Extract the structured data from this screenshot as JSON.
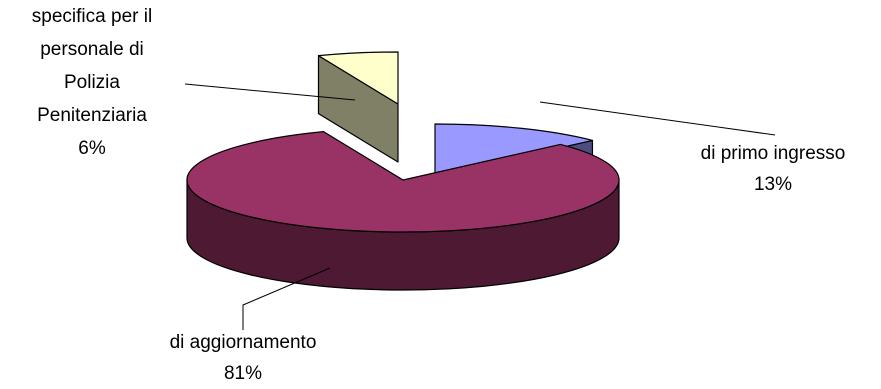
{
  "chart_data": {
    "type": "pie",
    "style": "3d-exploded",
    "title": "",
    "categories": [
      "di primo ingresso",
      "di aggiornamento",
      "specifica per il personale di Polizia Penitenziaria"
    ],
    "values": [
      13,
      81,
      6
    ],
    "value_labels": [
      "13%",
      "81%",
      "6%"
    ],
    "label_lines": [
      [
        "di primo ingresso"
      ],
      [
        "di aggiornamento"
      ],
      [
        "specifica per il",
        "personale di",
        "Polizia",
        "Penitenziaria"
      ]
    ],
    "colors": [
      "#9999FF",
      "#993366",
      "#FFFFCC"
    ],
    "side_colors": [
      "#4D4D80",
      "#4D1933",
      "#808066"
    ],
    "legend": "none"
  }
}
